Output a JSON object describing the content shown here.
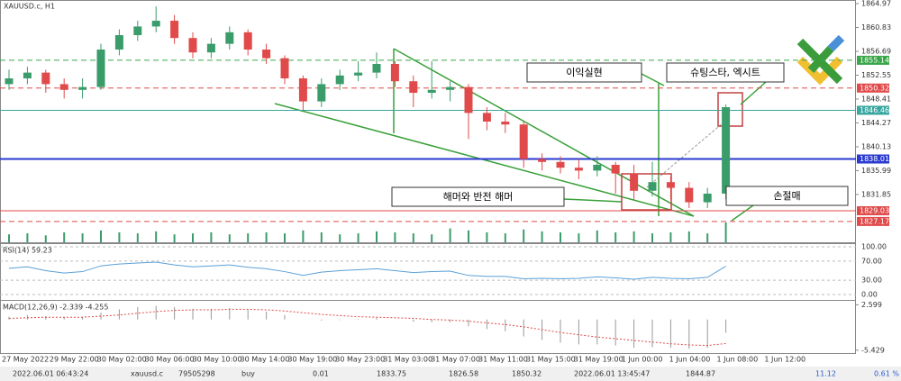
{
  "chart_data": [
    {
      "type": "candlestick",
      "title": "XAUUSD.c, H1",
      "up_color": "#3a9c6a",
      "down_color": "#e04a4a",
      "ohlc": [
        [
          1851,
          1853.5,
          1850,
          1852
        ],
        [
          1852,
          1854,
          1851,
          1853
        ],
        [
          1853,
          1853.5,
          1849.5,
          1851
        ],
        [
          1851,
          1852,
          1848.5,
          1850
        ],
        [
          1850,
          1852,
          1848.5,
          1850.5
        ],
        [
          1850.5,
          1858,
          1850,
          1857
        ],
        [
          1857,
          1860.5,
          1856,
          1859.5
        ],
        [
          1859.5,
          1862,
          1858.5,
          1861
        ],
        [
          1861,
          1864.5,
          1860,
          1862
        ],
        [
          1862,
          1863,
          1858,
          1859
        ],
        [
          1859,
          1860,
          1855.5,
          1856.5
        ],
        [
          1856.5,
          1859,
          1855.5,
          1858
        ],
        [
          1858,
          1861,
          1857,
          1860
        ],
        [
          1860,
          1860.5,
          1856,
          1857
        ],
        [
          1857,
          1858,
          1854.5,
          1855.5
        ],
        [
          1855.5,
          1856,
          1851,
          1852
        ],
        [
          1852,
          1852.5,
          1846.5,
          1848
        ],
        [
          1848,
          1852,
          1847,
          1851
        ],
        [
          1851,
          1853.5,
          1850,
          1852.5
        ],
        [
          1852.5,
          1855,
          1851.5,
          1853
        ],
        [
          1853,
          1856.5,
          1852,
          1854.5
        ],
        [
          1854.5,
          1855,
          1850.5,
          1851.5
        ],
        [
          1851.5,
          1852.5,
          1847,
          1849.5
        ],
        [
          1849.5,
          1855,
          1848.5,
          1850
        ],
        [
          1850,
          1851.5,
          1848,
          1850.5
        ],
        [
          1850.5,
          1851,
          1841.5,
          1846
        ],
        [
          1846,
          1847,
          1843,
          1844.5
        ],
        [
          1844.5,
          1846,
          1842.5,
          1844
        ],
        [
          1844,
          1844.5,
          1836.5,
          1838
        ],
        [
          1838,
          1839,
          1836,
          1837.5
        ],
        [
          1837.5,
          1838.5,
          1835.5,
          1836.5
        ],
        [
          1836.5,
          1838,
          1834.5,
          1836
        ],
        [
          1836,
          1838.5,
          1835,
          1837
        ],
        [
          1837,
          1837.5,
          1832,
          1835.5
        ],
        [
          1835.5,
          1837,
          1831,
          1832.5
        ],
        [
          1832.5,
          1837.5,
          1831.5,
          1834
        ],
        [
          1834,
          1835,
          1831,
          1833
        ],
        [
          1833,
          1834,
          1829.5,
          1830.5
        ],
        [
          1830.5,
          1833,
          1829.5,
          1832
        ],
        [
          1832,
          1847.5,
          1831,
          1847
        ]
      ],
      "volumes": [
        8,
        9,
        7,
        10,
        9,
        12,
        10,
        9,
        11,
        8,
        9,
        10,
        8,
        9,
        10,
        9,
        12,
        10,
        8,
        9,
        11,
        10,
        9,
        8,
        14,
        12,
        10,
        9,
        13,
        11,
        10,
        9,
        12,
        10,
        11,
        9,
        10,
        11,
        9,
        20
      ],
      "volume_color": "#3a9c6a",
      "ylim": [
        1823.4,
        1865.6
      ],
      "yticks": [
        1864.97,
        1860.83,
        1856.69,
        1852.55,
        1848.41,
        1844.27,
        1840.13,
        1835.99,
        1831.85
      ],
      "levels": [
        {
          "value": 1855.14,
          "color": "#3aa64a",
          "dash": true
        },
        {
          "value": 1850.32,
          "color": "#e04a4a",
          "dash": true
        },
        {
          "value": 1846.46,
          "color": "#3aa6a0",
          "dash": false
        },
        {
          "value": 1838.01,
          "color": "#2a3ad0",
          "dash": false
        },
        {
          "value": 1829.03,
          "color": "#e04a4a",
          "dash": false
        },
        {
          "value": 1827.17,
          "color": "#e04a4a",
          "dash": true
        }
      ],
      "x_labels": [
        "27 May 2022",
        "29 May 22:00",
        "30 May 02:00",
        "30 May 06:00",
        "30 May 10:00",
        "30 May 14:00",
        "30 May 19:00",
        "30 May 23:00",
        "31 May 03:00",
        "31 May 07:00",
        "31 May 11:00",
        "31 May 15:00",
        "31 May 19:00",
        "1 Jun 00:00",
        "1 Jun 04:00",
        "1 Jun 08:00",
        "1 Jun 12:00"
      ],
      "annotations": [
        "이익실현",
        "슈팅스타, 엑시트",
        "해머와 반전 해머",
        "손절매"
      ]
    },
    {
      "type": "line",
      "title": "RSI(14) 59.23",
      "color": "#5aa0d8",
      "ylim": [
        0,
        100
      ],
      "yticks": [
        {
          "value": 100,
          "label": "100.00"
        },
        {
          "value": 70,
          "label": "70.00"
        },
        {
          "value": 30,
          "label": "30.00"
        },
        {
          "value": 0,
          "label": "0.00"
        }
      ],
      "values": [
        55,
        58,
        50,
        45,
        48,
        60,
        64,
        66,
        68,
        62,
        58,
        60,
        62,
        57,
        54,
        48,
        40,
        47,
        50,
        52,
        54,
        50,
        46,
        48,
        49,
        40,
        38,
        38,
        33,
        34,
        33,
        34,
        37,
        35,
        32,
        36,
        34,
        33,
        36,
        59.23
      ]
    },
    {
      "type": "bar",
      "title": "MACD(12,26,9) -2.339 -4.255",
      "ylim": [
        -6.1,
        3.3
      ],
      "yticks": [
        2.599,
        -5.429
      ],
      "series": [
        {
          "name": "MACD",
          "color": "#999999",
          "values": [
            0.5,
            0.8,
            0.6,
            0.4,
            0.5,
            1.2,
            1.8,
            2.2,
            2.4,
            2.2,
            1.9,
            1.9,
            2.0,
            1.7,
            1.4,
            0.8,
            0.0,
            -0.2,
            -0.1,
            0.1,
            0.3,
            0.0,
            -0.4,
            -0.5,
            -0.5,
            -1.2,
            -1.7,
            -2.1,
            -3.0,
            -3.6,
            -4.1,
            -4.4,
            -4.4,
            -4.6,
            -5.0,
            -4.9,
            -5.0,
            -5.2,
            -5.0,
            -2.339
          ]
        },
        {
          "name": "Signal",
          "color": "#e04a4a",
          "values": [
            0.2,
            0.3,
            0.4,
            0.4,
            0.4,
            0.6,
            0.8,
            1.1,
            1.4,
            1.6,
            1.7,
            1.7,
            1.8,
            1.8,
            1.7,
            1.5,
            1.2,
            0.9,
            0.7,
            0.5,
            0.4,
            0.3,
            0.2,
            0.0,
            -0.1,
            -0.3,
            -0.6,
            -0.9,
            -1.3,
            -1.8,
            -2.3,
            -2.7,
            -3.1,
            -3.4,
            -3.7,
            -4.0,
            -4.3,
            -4.5,
            -4.6,
            -4.255
          ]
        }
      ]
    }
  ],
  "status_bar": [
    "2022.06.01 06:43:24",
    "xauusd.c",
    "79505298",
    "buy",
    "0.01",
    "1833.75",
    "1826.58",
    "1850.32",
    "2022.06.01 13:45:47",
    "1844.87",
    "11.12",
    "0.61 %"
  ]
}
